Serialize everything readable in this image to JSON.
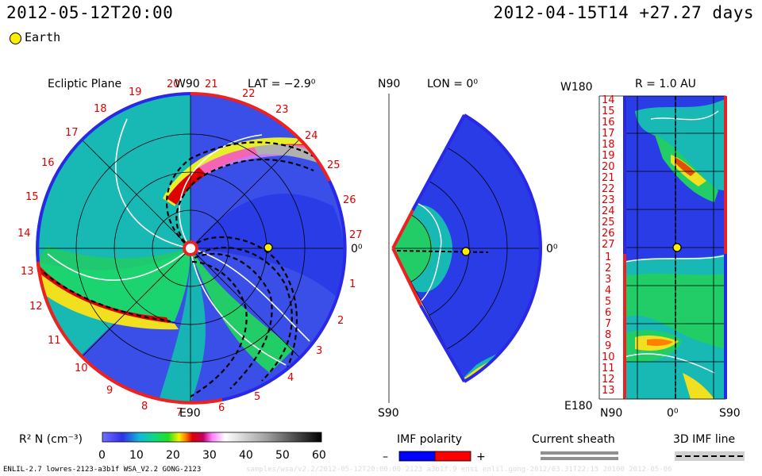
{
  "header": {
    "model_time": "2012-05-12T20:00",
    "ref_time": "2012-04-15T14 +27.27 days"
  },
  "legend_earth": {
    "label": "Earth",
    "color": "#ffee00"
  },
  "panels": {
    "ecliptic": {
      "title": "Ecliptic Plane",
      "lat_label": "LAT = −2.9⁰",
      "top_label": "W90",
      "bottom_label": "E90",
      "right_label": "0⁰",
      "day_numbers": [
        "20",
        "21",
        "22",
        "23",
        "24",
        "25",
        "26",
        "27",
        "1",
        "2",
        "3",
        "4",
        "5",
        "6",
        "7",
        "8",
        "9",
        "10",
        "11",
        "12",
        "13",
        "14",
        "15",
        "16",
        "17",
        "18",
        "19"
      ]
    },
    "meridional": {
      "top_label": "N90",
      "lon_label": "LON = 0⁰",
      "bottom_label": "S90",
      "right_label": "0⁰"
    },
    "radial": {
      "r_label": "R = 1.0 AU",
      "top_left_label": "W180",
      "bottom_left_label": "E180",
      "x_labels": [
        "N90",
        "0⁰",
        "S90"
      ],
      "days": [
        "14",
        "15",
        "16",
        "17",
        "18",
        "19",
        "20",
        "21",
        "22",
        "23",
        "24",
        "25",
        "26",
        "27",
        "1",
        "2",
        "3",
        "4",
        "5",
        "6",
        "7",
        "8",
        "9",
        "10",
        "11",
        "12",
        "13"
      ]
    }
  },
  "colorbar": {
    "label": "R² N (cm⁻³)",
    "ticks": [
      "0",
      "10",
      "20",
      "30",
      "40",
      "50",
      "60"
    ]
  },
  "imf_legend": {
    "title": "IMF polarity",
    "minus": "–",
    "plus": "+",
    "neg_color": "#0000ff",
    "pos_color": "#ff0000"
  },
  "current_sheath": {
    "title": "Current sheath"
  },
  "imf_line": {
    "title": "3D IMF line"
  },
  "footer": {
    "version": "ENLIL-2.7 lowres-2123-a3b1f WSA_V2.2 GONG-2123",
    "path": "samples/wsa/v2.2/2012-05-12T20:00:00 2123 a3b1f.9 ensi enlil.gong-2012/03.31T22:15 20100 2012-05-06"
  },
  "colors": {
    "blue": "#2828e6",
    "red": "#ee2020",
    "teal": "#19b9b0",
    "green": "#11d060"
  }
}
